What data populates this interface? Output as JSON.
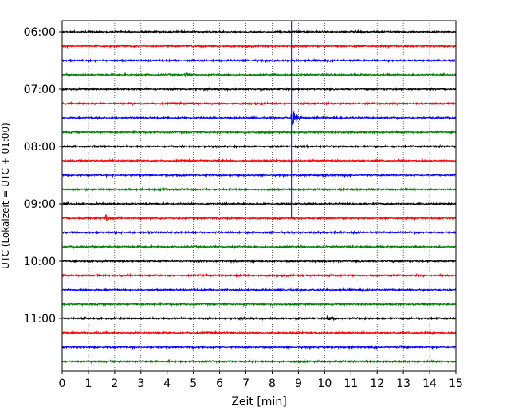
{
  "chart_data": {
    "type": "line",
    "title": "",
    "xlabel": "Zeit  [min]",
    "ylabel": "UTC (Lokalzeit = UTC + 01:00)",
    "xlim": [
      0,
      15
    ],
    "x_ticks": [
      0,
      1,
      2,
      3,
      4,
      5,
      6,
      7,
      8,
      9,
      10,
      11,
      12,
      13,
      14,
      15
    ],
    "y_ticks": [
      "06:00",
      "07:00",
      "08:00",
      "09:00",
      "10:00",
      "11:00"
    ],
    "grid": true,
    "trace_interval_min": 15,
    "trace_colors": [
      "#000000",
      "#ff0000",
      "#0000ff",
      "#008000"
    ],
    "traces": [
      {
        "start": "06:00",
        "amplitude": 0.6,
        "events": []
      },
      {
        "start": "06:15",
        "amplitude": 0.6,
        "events": []
      },
      {
        "start": "06:30",
        "amplitude": 0.6,
        "events": []
      },
      {
        "start": "06:45",
        "amplitude": 0.6,
        "events": [
          {
            "t": 4.7,
            "amp": 1.4
          }
        ]
      },
      {
        "start": "07:00",
        "amplitude": 0.6,
        "events": []
      },
      {
        "start": "07:15",
        "amplitude": 0.6,
        "events": []
      },
      {
        "start": "07:30",
        "amplitude": 0.6,
        "events": [
          {
            "t": 8.75,
            "amp": 10
          }
        ]
      },
      {
        "start": "07:45",
        "amplitude": 0.6,
        "events": []
      },
      {
        "start": "08:00",
        "amplitude": 0.6,
        "events": []
      },
      {
        "start": "08:15",
        "amplitude": 0.6,
        "events": []
      },
      {
        "start": "08:30",
        "amplitude": 0.6,
        "events": [
          {
            "t": 4.3,
            "amp": 1.4
          }
        ]
      },
      {
        "start": "08:45",
        "amplitude": 0.6,
        "events": [
          {
            "t": 3.7,
            "amp": 1.5
          }
        ]
      },
      {
        "start": "09:00",
        "amplitude": 0.6,
        "events": []
      },
      {
        "start": "09:15",
        "amplitude": 0.6,
        "events": [
          {
            "t": 1.65,
            "amp": 3.5
          }
        ]
      },
      {
        "start": "09:30",
        "amplitude": 0.6,
        "events": []
      },
      {
        "start": "09:45",
        "amplitude": 0.6,
        "events": []
      },
      {
        "start": "10:00",
        "amplitude": 0.6,
        "events": []
      },
      {
        "start": "10:15",
        "amplitude": 0.6,
        "events": []
      },
      {
        "start": "10:30",
        "amplitude": 0.6,
        "events": []
      },
      {
        "start": "10:45",
        "amplitude": 0.6,
        "events": []
      },
      {
        "start": "11:00",
        "amplitude": 0.6,
        "events": [
          {
            "t": 10.1,
            "amp": 1.6
          }
        ]
      },
      {
        "start": "11:15",
        "amplitude": 0.6,
        "events": []
      },
      {
        "start": "11:30",
        "amplitude": 0.6,
        "events": [
          {
            "t": 12.9,
            "amp": 1.4
          }
        ]
      },
      {
        "start": "11:45",
        "amplitude": 0.6,
        "events": []
      }
    ],
    "vertical_marker": {
      "x": 8.75,
      "from": "06:00",
      "to": "09:15",
      "color": "#0000ff"
    }
  }
}
